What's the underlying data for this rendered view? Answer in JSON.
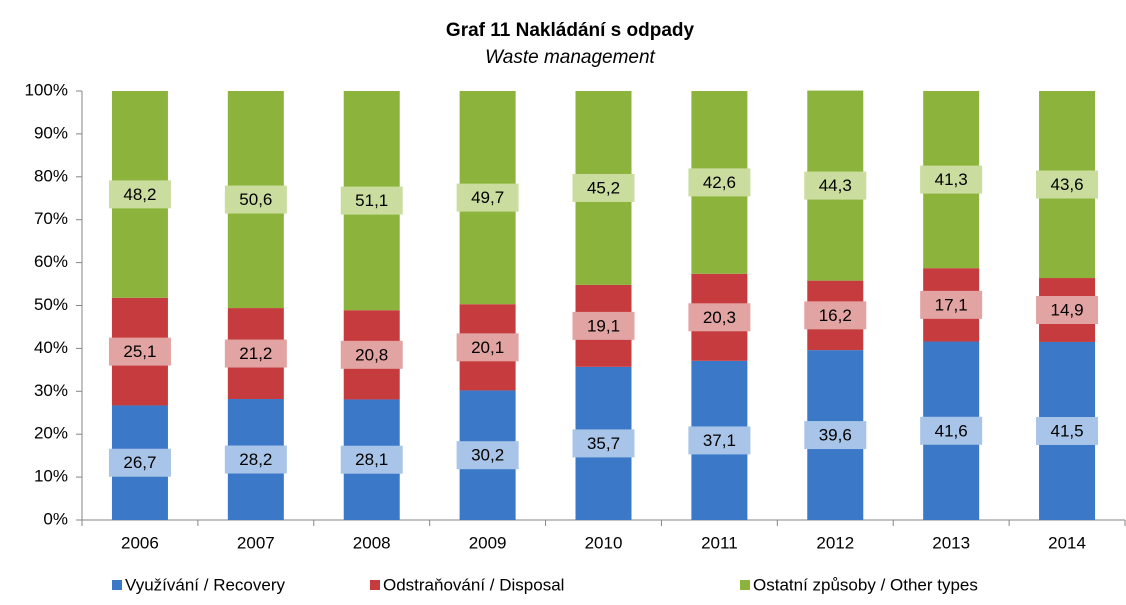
{
  "chart_data": {
    "type": "stacked_bar",
    "title": "Graf 11 Nakládání s odpady",
    "subtitle": "Waste management",
    "categories": [
      "2006",
      "2007",
      "2008",
      "2009",
      "2010",
      "2011",
      "2012",
      "2013",
      "2014"
    ],
    "series": [
      {
        "name": "Využívání / Recovery",
        "color": "#3b78c8",
        "label_color": "#a8c4e8",
        "values": [
          26.7,
          28.2,
          28.1,
          30.2,
          35.7,
          37.1,
          39.6,
          41.6,
          41.5
        ],
        "value_labels": [
          "26,7",
          "28,2",
          "28,1",
          "30,2",
          "35,7",
          "37,1",
          "39,6",
          "41,6",
          "41,5"
        ]
      },
      {
        "name": "Odstraňování / Disposal",
        "color": "#c63b3d",
        "label_color": "#e2a3a3",
        "values": [
          25.1,
          21.2,
          20.8,
          20.1,
          19.1,
          20.3,
          16.2,
          17.1,
          14.9
        ],
        "value_labels": [
          "25,1",
          "21,2",
          "20,8",
          "20,1",
          "19,1",
          "20,3",
          "16,2",
          "17,1",
          "14,9"
        ]
      },
      {
        "name": "Ostatní způsoby / Other types",
        "color": "#8cb33c",
        "label_color": "#cadd9f",
        "values": [
          48.2,
          50.6,
          51.1,
          49.7,
          45.2,
          42.6,
          44.3,
          41.3,
          43.6
        ],
        "value_labels": [
          "48,2",
          "50,6",
          "51,1",
          "49,7",
          "45,2",
          "42,6",
          "44,3",
          "41,3",
          "43,6"
        ]
      }
    ],
    "ylim": [
      0,
      100
    ],
    "yticks": [
      {
        "value": 0,
        "label": "0%"
      },
      {
        "value": 10,
        "label": "10%"
      },
      {
        "value": 20,
        "label": "20%"
      },
      {
        "value": 30,
        "label": "30%"
      },
      {
        "value": 40,
        "label": "40%"
      },
      {
        "value": 50,
        "label": "50%"
      },
      {
        "value": 60,
        "label": "60%"
      },
      {
        "value": 70,
        "label": "70%"
      },
      {
        "value": 80,
        "label": "80%"
      },
      {
        "value": 90,
        "label": "90%"
      },
      {
        "value": 100,
        "label": "100%"
      }
    ],
    "grid": false,
    "legend": "bottom"
  }
}
